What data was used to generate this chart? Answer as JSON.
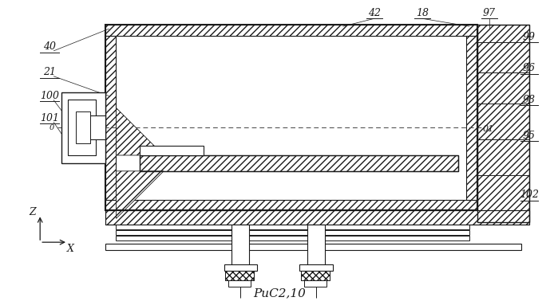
{
  "bg_color": "#ffffff",
  "line_color": "#1a1a1a",
  "fig_caption": "РиС2,10",
  "figsize": [
    6.99,
    3.83
  ],
  "dpi": 100
}
